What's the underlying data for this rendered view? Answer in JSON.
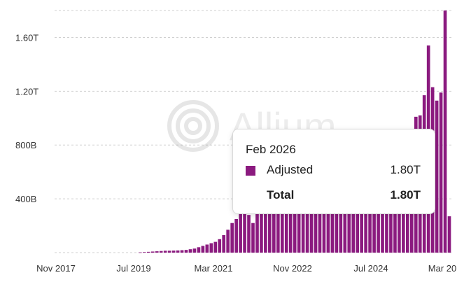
{
  "chart_data": {
    "type": "bar",
    "x_tick_labels": [
      "Nov 2017",
      "Jul 2019",
      "Mar 2021",
      "Nov 2022",
      "Jul 2024",
      "Mar 20"
    ],
    "y_tick_labels": [
      "400B",
      "800B",
      "1.20T",
      "1.60T"
    ],
    "y_ticks": [
      400,
      800,
      1200,
      1600
    ],
    "ylim": [
      0,
      1800
    ],
    "unit": "billions",
    "series": [
      {
        "name": "Adjusted",
        "color": "#8b1a7f",
        "values": [
          0,
          0,
          0,
          0,
          0,
          0,
          0,
          0,
          0,
          0,
          0,
          0,
          0,
          0,
          0,
          0,
          0,
          0,
          0,
          0,
          2,
          4,
          6,
          8,
          10,
          12,
          14,
          14,
          15,
          16,
          18,
          20,
          25,
          30,
          40,
          50,
          60,
          70,
          80,
          100,
          130,
          170,
          220,
          250,
          320,
          480,
          280,
          220,
          300,
          330,
          340,
          360,
          370,
          380,
          360,
          290,
          300,
          310,
          320,
          330,
          300,
          320,
          330,
          300,
          330,
          310,
          320,
          300,
          320,
          310,
          300,
          330,
          320,
          310,
          300,
          330,
          320,
          310,
          300,
          330,
          320,
          310,
          300,
          330,
          320,
          310,
          1010,
          1020,
          1170,
          1540,
          1230,
          1130,
          1190,
          1800,
          270
        ],
        "hidden_under_tooltip": true
      }
    ],
    "grid": "horizontal-dashed",
    "watermark": "Allium"
  },
  "tooltip": {
    "title": "Feb 2026",
    "rows": [
      {
        "label": "Adjusted",
        "value": "1.80T",
        "swatch": "#8b1a7f"
      },
      {
        "label": "Total",
        "value": "1.80T"
      }
    ]
  }
}
